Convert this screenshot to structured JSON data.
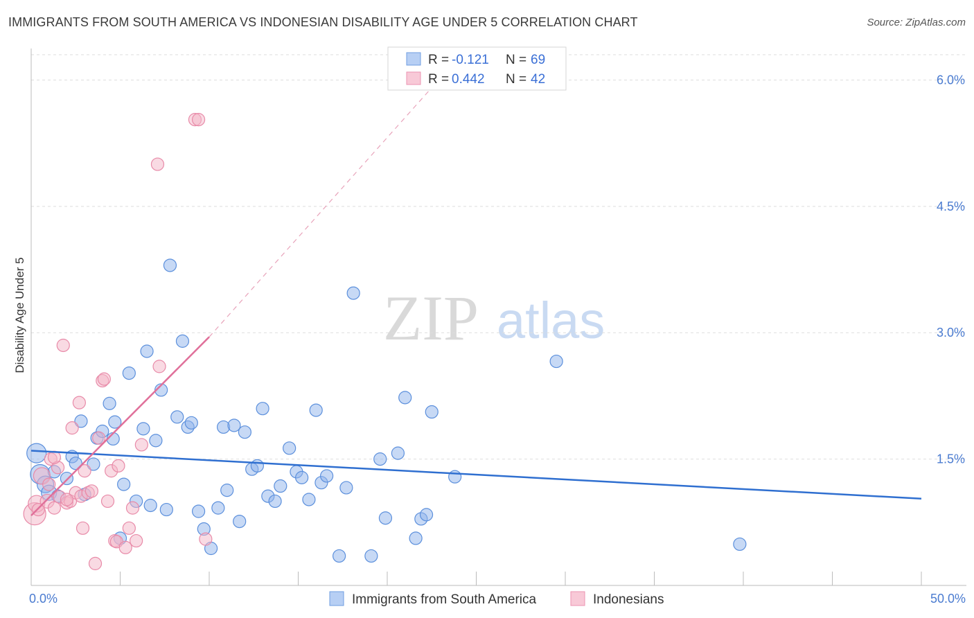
{
  "title": "IMMIGRANTS FROM SOUTH AMERICA VS INDONESIAN DISABILITY AGE UNDER 5 CORRELATION CHART",
  "source": "Source: ZipAtlas.com",
  "watermark": {
    "zip": "ZIP",
    "atlas": "atlas"
  },
  "chart_data": {
    "type": "scatter",
    "title": "IMMIGRANTS FROM SOUTH AMERICA VS INDONESIAN DISABILITY AGE UNDER 5 CORRELATION CHART",
    "xlabel": "",
    "ylabel": "Disability Age Under 5",
    "xlim": [
      0,
      50
    ],
    "ylim": [
      0,
      6.3
    ],
    "x_tick_labels": [
      "0.0%",
      "50.0%"
    ],
    "y_ticks": [
      1.5,
      3.0,
      4.5,
      6.0
    ],
    "y_tick_labels": [
      "1.5%",
      "3.0%",
      "4.5%",
      "6.0%"
    ],
    "grid": true,
    "legend_position": "top-center",
    "series": [
      {
        "name": "Immigrants from South America",
        "color": "#8fb4ec",
        "stroke": "#5b8fdc",
        "line_color": "#2f6fd0",
        "R": "-0.121",
        "N": "69",
        "trend": {
          "x": [
            0,
            50
          ],
          "y": [
            1.6,
            1.03
          ],
          "dashed_extension": false
        },
        "points": [
          [
            0.3,
            1.57,
            14
          ],
          [
            0.5,
            1.32,
            14
          ],
          [
            0.8,
            1.2,
            12
          ],
          [
            1.0,
            1.1,
            11
          ],
          [
            1.3,
            1.35,
            9
          ],
          [
            1.5,
            1.06,
            9
          ],
          [
            2.0,
            1.27,
            9
          ],
          [
            2.3,
            1.53,
            9
          ],
          [
            2.5,
            1.45,
            9
          ],
          [
            2.8,
            1.95,
            9
          ],
          [
            3.0,
            1.08,
            9
          ],
          [
            3.5,
            1.44,
            9
          ],
          [
            3.7,
            1.75,
            9
          ],
          [
            4.0,
            1.83,
            9
          ],
          [
            4.4,
            2.16,
            9
          ],
          [
            4.7,
            1.94,
            9
          ],
          [
            5.0,
            0.56,
            9
          ],
          [
            5.2,
            1.2,
            9
          ],
          [
            5.5,
            2.52,
            9
          ],
          [
            5.9,
            1.0,
            9
          ],
          [
            6.3,
            1.86,
            9
          ],
          [
            6.5,
            2.78,
            9
          ],
          [
            6.7,
            0.95,
            9
          ],
          [
            7.0,
            1.72,
            9
          ],
          [
            7.3,
            2.32,
            9
          ],
          [
            7.6,
            0.9,
            9
          ],
          [
            7.8,
            3.8,
            9
          ],
          [
            8.2,
            2.0,
            9
          ],
          [
            8.5,
            2.9,
            9
          ],
          [
            8.8,
            1.88,
            9
          ],
          [
            9.0,
            1.93,
            9
          ],
          [
            9.4,
            0.88,
            9
          ],
          [
            9.7,
            0.67,
            9
          ],
          [
            10.1,
            0.44,
            9
          ],
          [
            10.5,
            0.92,
            9
          ],
          [
            10.8,
            1.88,
            9
          ],
          [
            11.0,
            1.13,
            9
          ],
          [
            11.4,
            1.9,
            9
          ],
          [
            11.7,
            0.76,
            9
          ],
          [
            12.0,
            1.82,
            9
          ],
          [
            12.4,
            1.38,
            9
          ],
          [
            12.7,
            1.42,
            9
          ],
          [
            13.0,
            2.1,
            9
          ],
          [
            13.3,
            1.06,
            9
          ],
          [
            13.7,
            1.0,
            9
          ],
          [
            14.0,
            1.18,
            9
          ],
          [
            14.5,
            1.63,
            9
          ],
          [
            14.9,
            1.35,
            9
          ],
          [
            15.2,
            1.28,
            9
          ],
          [
            15.6,
            1.02,
            9
          ],
          [
            16.0,
            2.08,
            9
          ],
          [
            16.3,
            1.22,
            9
          ],
          [
            16.6,
            1.3,
            9
          ],
          [
            17.3,
            0.35,
            9
          ],
          [
            17.7,
            1.16,
            9
          ],
          [
            18.1,
            3.47,
            9
          ],
          [
            19.1,
            0.35,
            9
          ],
          [
            19.6,
            1.5,
            9
          ],
          [
            19.9,
            0.8,
            9
          ],
          [
            20.6,
            1.57,
            9
          ],
          [
            21.0,
            2.23,
            9
          ],
          [
            21.6,
            0.56,
            9
          ],
          [
            21.9,
            0.79,
            9
          ],
          [
            22.2,
            0.84,
            9
          ],
          [
            22.5,
            2.06,
            9
          ],
          [
            23.8,
            1.29,
            9
          ],
          [
            29.5,
            2.66,
            9
          ],
          [
            39.8,
            0.49,
            9
          ],
          [
            4.6,
            1.74,
            9
          ]
        ]
      },
      {
        "name": "Indonesians",
        "color": "#f4b6c8",
        "stroke": "#e88aa8",
        "line_color": "#e0709a",
        "R": "0.442",
        "N": "42",
        "trend": {
          "x": [
            0,
            10.0
          ],
          "y": [
            0.83,
            2.95
          ],
          "dashed_to": [
            22.8,
            5.98
          ]
        },
        "points": [
          [
            0.2,
            0.85,
            16
          ],
          [
            0.3,
            0.97,
            12
          ],
          [
            0.6,
            1.3,
            12
          ],
          [
            0.9,
            1.0,
            10
          ],
          [
            1.0,
            1.2,
            9
          ],
          [
            1.1,
            1.5,
            9
          ],
          [
            1.3,
            0.92,
            9
          ],
          [
            1.5,
            1.4,
            9
          ],
          [
            1.6,
            1.05,
            9
          ],
          [
            1.8,
            2.85,
            9
          ],
          [
            2.0,
            0.98,
            9
          ],
          [
            2.2,
            1.0,
            9
          ],
          [
            2.3,
            1.87,
            9
          ],
          [
            2.5,
            1.1,
            9
          ],
          [
            2.7,
            2.17,
            9
          ],
          [
            2.8,
            1.06,
            9
          ],
          [
            2.9,
            0.68,
            9
          ],
          [
            3.0,
            1.36,
            9
          ],
          [
            3.2,
            1.1,
            9
          ],
          [
            3.4,
            1.12,
            9
          ],
          [
            3.6,
            0.26,
            9
          ],
          [
            3.8,
            1.75,
            9
          ],
          [
            4.0,
            2.43,
            9
          ],
          [
            4.1,
            2.45,
            9
          ],
          [
            4.3,
            1.0,
            9
          ],
          [
            4.5,
            1.36,
            9
          ],
          [
            4.7,
            0.53,
            9
          ],
          [
            4.8,
            0.52,
            9
          ],
          [
            4.9,
            1.42,
            9
          ],
          [
            5.3,
            0.45,
            9
          ],
          [
            5.5,
            0.68,
            9
          ],
          [
            5.7,
            0.92,
            9
          ],
          [
            5.9,
            0.53,
            9
          ],
          [
            6.2,
            1.67,
            9
          ],
          [
            7.1,
            5.0,
            9
          ],
          [
            7.2,
            2.6,
            9
          ],
          [
            9.2,
            5.53,
            9
          ],
          [
            9.4,
            5.53,
            9
          ],
          [
            9.8,
            0.55,
            9
          ],
          [
            1.3,
            1.52,
            9
          ],
          [
            0.4,
            0.9,
            9
          ],
          [
            2.0,
            1.02,
            9
          ]
        ]
      }
    ]
  }
}
